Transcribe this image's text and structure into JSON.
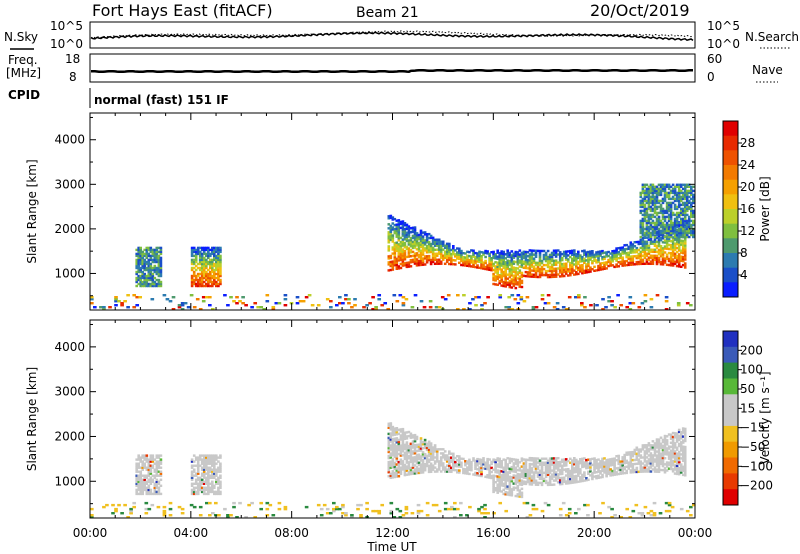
{
  "header": {
    "title": "Fort Hays East (fitACF)",
    "beam": "Beam 21",
    "date": "20/Oct/2019"
  },
  "strips": {
    "nsky_label": "N.Sky",
    "nsearch_label": "N.Search",
    "nsky_ticks": [
      "10^5",
      "10^0"
    ],
    "nsearch_ticks": [
      "10^5",
      "10^0"
    ],
    "freq_label_1": "Freq.",
    "freq_label_2": "[MHz]",
    "freq_ticks": [
      "18",
      "8"
    ],
    "nave_label": "Nave",
    "nave_ticks": [
      "60",
      "0"
    ],
    "cpid_label": "CPID",
    "cpid_text": "normal (fast) 151 IF"
  },
  "chart_data": [
    {
      "type": "heatmap",
      "name_panel": "power",
      "ylabel": "Slant Range [km]",
      "xlabel": "Time UT",
      "x_ticks": [
        "00:00",
        "04:00",
        "08:00",
        "12:00",
        "16:00",
        "20:00",
        "00:00"
      ],
      "xlim_hours": [
        0,
        24
      ],
      "ylim_km": [
        180,
        4600
      ],
      "y_ticks": [
        1000,
        2000,
        3000,
        4000
      ],
      "colorbar": {
        "label": "Power [dB]",
        "ticks": [
          "4",
          "8",
          "12",
          "16",
          "20",
          "24",
          "28"
        ],
        "colors": [
          "#0a1eff",
          "#1a4fc8",
          "#2c7bb0",
          "#4e9a6e",
          "#7fbf3f",
          "#bcd02a",
          "#f0c010",
          "#f5a000",
          "#f27a00",
          "#ee5200",
          "#e82a00",
          "#e00000"
        ]
      },
      "regions": [
        {
          "t0": 1.8,
          "t1": 2.8,
          "r_low": 700,
          "r_high": 1600,
          "level": "low"
        },
        {
          "t0": 4.0,
          "t1": 5.2,
          "r_low": 700,
          "r_high": 1600,
          "level": "high"
        },
        {
          "t0": 11.8,
          "t1": 23.6,
          "r_low": 1000,
          "r_high": 2300,
          "level": "high"
        },
        {
          "t0": 21.8,
          "t1": 23.9,
          "r_low": 1800,
          "r_high": 3000,
          "level": "low"
        },
        {
          "t0": 0.0,
          "t1": 24.0,
          "r_low": 180,
          "r_high": 500,
          "level": "noise"
        }
      ]
    },
    {
      "type": "heatmap",
      "name_panel": "velocity",
      "ylabel": "Slant Range [km]",
      "xlabel": "Time UT",
      "x_ticks": [
        "00:00",
        "04:00",
        "08:00",
        "12:00",
        "16:00",
        "20:00",
        "00:00"
      ],
      "xlim_hours": [
        0,
        24
      ],
      "ylim_km": [
        180,
        4600
      ],
      "y_ticks": [
        1000,
        2000,
        3000,
        4000
      ],
      "colorbar": {
        "label": "Velocity [m s⁻¹]",
        "ticks": [
          "200",
          "100",
          "50",
          "15",
          "−15",
          "−50",
          "−100",
          "−200"
        ],
        "colors": [
          "#2030c0",
          "#3a5ab8",
          "#2a8a40",
          "#58b838",
          "#c8c8c8",
          "#c8c8c8",
          "#f0c020",
          "#f09a00",
          "#f06a00",
          "#e83a00",
          "#e00000"
        ]
      },
      "regions": [
        {
          "t0": 1.8,
          "t1": 2.8,
          "r_low": 700,
          "r_high": 1600,
          "level": "ground"
        },
        {
          "t0": 4.0,
          "t1": 5.2,
          "r_low": 700,
          "r_high": 1600,
          "level": "ground"
        },
        {
          "t0": 11.8,
          "t1": 23.6,
          "r_low": 1000,
          "r_high": 2300,
          "level": "ground"
        },
        {
          "t0": 0.0,
          "t1": 24.0,
          "r_low": 180,
          "r_high": 500,
          "level": "noise"
        }
      ]
    }
  ]
}
